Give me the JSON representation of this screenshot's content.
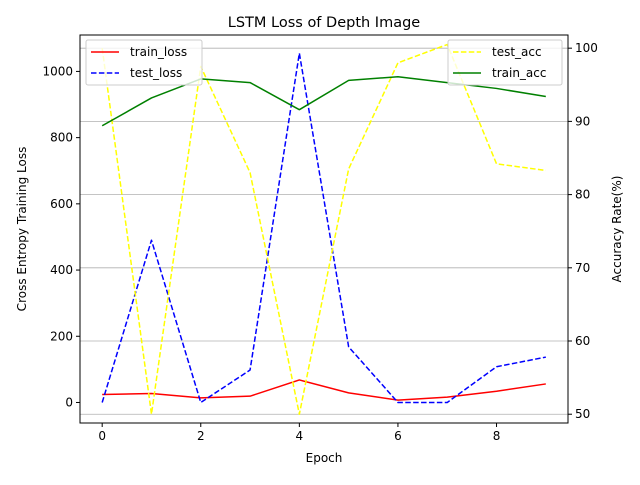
{
  "chart_data": {
    "type": "line",
    "title": "LSTM Loss of Depth Image",
    "xlabel": "Epoch",
    "ylabel_left": "Cross Entropy Training Loss",
    "ylabel_right": "Accuracy Rate(%)",
    "x": [
      0,
      1,
      2,
      3,
      4,
      5,
      6,
      7,
      8,
      9
    ],
    "xlim": [
      -0.45,
      9.45
    ],
    "ylim_left": [
      -62,
      1110
    ],
    "ylim_right": [
      48.8,
      101.8
    ],
    "xticks": [
      0,
      2,
      4,
      6,
      8
    ],
    "yticks_left": [
      0,
      200,
      400,
      600,
      800,
      1000
    ],
    "yticks_right": [
      50,
      60,
      70,
      80,
      90,
      100
    ],
    "grid": "right-axis horizontal",
    "left_series": [
      {
        "name": "train_loss",
        "color": "#ff0000",
        "dash": "solid",
        "values": [
          24,
          27,
          14,
          19,
          68,
          29,
          7,
          16,
          34,
          56
        ]
      },
      {
        "name": "test_loss",
        "color": "#0000ff",
        "dash": "dashed",
        "values": [
          0,
          490,
          0,
          98,
          1055,
          168,
          0,
          0,
          108,
          137
        ]
      }
    ],
    "right_series": [
      {
        "name": "test_acc",
        "color": "#ffff00",
        "dash": "dashed",
        "values": [
          100,
          50,
          97.5,
          83,
          50,
          83.5,
          98,
          100.5,
          84.2,
          83.3
        ]
      },
      {
        "name": "train_acc",
        "color": "#008000",
        "dash": "solid",
        "values": [
          89.4,
          93.2,
          95.8,
          95.3,
          91.6,
          95.6,
          96.1,
          95.3,
          94.5,
          93.4
        ]
      }
    ],
    "legend_left_placement": "top-left",
    "legend_right_placement": "top-right"
  }
}
